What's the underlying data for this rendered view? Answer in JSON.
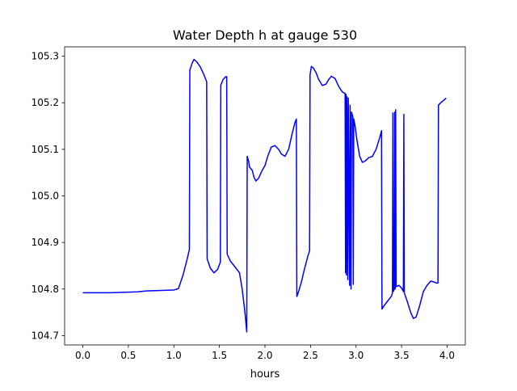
{
  "chart_data": {
    "type": "line",
    "title": "Water Depth h at gauge 530",
    "xlabel": "hours",
    "ylabel": "",
    "xlim": [
      -0.2,
      4.2
    ],
    "ylim": [
      104.68,
      105.32
    ],
    "xticks": [
      0.0,
      0.5,
      1.0,
      1.5,
      2.0,
      2.5,
      3.0,
      3.5,
      4.0
    ],
    "xtick_labels": [
      "0.0",
      "0.5",
      "1.0",
      "1.5",
      "2.0",
      "2.5",
      "3.0",
      "3.5",
      "4.0"
    ],
    "yticks": [
      104.7,
      104.8,
      104.9,
      105.0,
      105.1,
      105.2,
      105.3
    ],
    "ytick_labels": [
      "104.7",
      "104.8",
      "104.9",
      "105.0",
      "105.1",
      "105.2",
      "105.3"
    ],
    "grid": false,
    "series": [
      {
        "color": "#0000ff",
        "points": [
          [
            0.0,
            104.792
          ],
          [
            0.3,
            104.792
          ],
          [
            0.6,
            104.794
          ],
          [
            0.7,
            104.796
          ],
          [
            1.0,
            104.798
          ],
          [
            1.05,
            104.801
          ],
          [
            1.1,
            104.83
          ],
          [
            1.14,
            104.86
          ],
          [
            1.17,
            104.885
          ],
          [
            1.175,
            105.27
          ],
          [
            1.2,
            105.285
          ],
          [
            1.22,
            105.293
          ],
          [
            1.25,
            105.288
          ],
          [
            1.29,
            105.277
          ],
          [
            1.33,
            105.26
          ],
          [
            1.36,
            105.245
          ],
          [
            1.365,
            104.865
          ],
          [
            1.4,
            104.845
          ],
          [
            1.44,
            104.835
          ],
          [
            1.48,
            104.842
          ],
          [
            1.51,
            104.858
          ],
          [
            1.515,
            105.238
          ],
          [
            1.54,
            105.25
          ],
          [
            1.57,
            105.256
          ],
          [
            1.58,
            105.256
          ],
          [
            1.585,
            104.875
          ],
          [
            1.62,
            104.86
          ],
          [
            1.67,
            104.848
          ],
          [
            1.72,
            104.835
          ],
          [
            1.75,
            104.8
          ],
          [
            1.78,
            104.75
          ],
          [
            1.8,
            104.708
          ],
          [
            1.805,
            105.085
          ],
          [
            1.82,
            105.075
          ],
          [
            1.83,
            105.062
          ],
          [
            1.86,
            105.055
          ],
          [
            1.88,
            105.04
          ],
          [
            1.9,
            105.032
          ],
          [
            1.93,
            105.038
          ],
          [
            1.97,
            105.055
          ],
          [
            2.0,
            105.065
          ],
          [
            2.03,
            105.085
          ],
          [
            2.07,
            105.105
          ],
          [
            2.11,
            105.108
          ],
          [
            2.15,
            105.1
          ],
          [
            2.18,
            105.09
          ],
          [
            2.22,
            105.085
          ],
          [
            2.26,
            105.1
          ],
          [
            2.3,
            105.135
          ],
          [
            2.33,
            105.158
          ],
          [
            2.345,
            105.165
          ],
          [
            2.35,
            104.784
          ],
          [
            2.37,
            104.795
          ],
          [
            2.4,
            104.815
          ],
          [
            2.43,
            104.84
          ],
          [
            2.47,
            104.87
          ],
          [
            2.49,
            104.882
          ],
          [
            2.495,
            105.26
          ],
          [
            2.51,
            105.278
          ],
          [
            2.53,
            105.275
          ],
          [
            2.56,
            105.265
          ],
          [
            2.59,
            105.25
          ],
          [
            2.63,
            105.237
          ],
          [
            2.67,
            105.24
          ],
          [
            2.7,
            105.25
          ],
          [
            2.73,
            105.257
          ],
          [
            2.77,
            105.252
          ],
          [
            2.81,
            105.235
          ],
          [
            2.85,
            105.223
          ],
          [
            2.88,
            105.22
          ],
          [
            2.885,
            104.835
          ],
          [
            2.89,
            105.218
          ],
          [
            2.895,
            104.83
          ],
          [
            2.9,
            105.213
          ],
          [
            2.91,
            104.82
          ],
          [
            2.915,
            105.21
          ],
          [
            2.93,
            104.808
          ],
          [
            2.935,
            105.195
          ],
          [
            2.945,
            104.8
          ],
          [
            2.95,
            105.18
          ],
          [
            2.965,
            105.17
          ],
          [
            2.97,
            104.81
          ],
          [
            2.975,
            105.165
          ],
          [
            2.99,
            105.15
          ],
          [
            3.01,
            105.12
          ],
          [
            3.04,
            105.085
          ],
          [
            3.07,
            105.072
          ],
          [
            3.1,
            105.075
          ],
          [
            3.14,
            105.082
          ],
          [
            3.18,
            105.085
          ],
          [
            3.22,
            105.1
          ],
          [
            3.26,
            105.125
          ],
          [
            3.28,
            105.14
          ],
          [
            3.285,
            104.757
          ],
          [
            3.31,
            104.765
          ],
          [
            3.35,
            104.775
          ],
          [
            3.39,
            104.785
          ],
          [
            3.4,
            104.792
          ],
          [
            3.405,
            105.178
          ],
          [
            3.41,
            104.795
          ],
          [
            3.42,
            104.8
          ],
          [
            3.425,
            105.18
          ],
          [
            3.43,
            104.8
          ],
          [
            3.435,
            105.185
          ],
          [
            3.44,
            104.805
          ],
          [
            3.47,
            104.808
          ],
          [
            3.5,
            104.802
          ],
          [
            3.52,
            104.795
          ],
          [
            3.525,
            105.175
          ],
          [
            3.53,
            104.792
          ],
          [
            3.56,
            104.775
          ],
          [
            3.6,
            104.75
          ],
          [
            3.63,
            104.737
          ],
          [
            3.66,
            104.74
          ],
          [
            3.7,
            104.765
          ],
          [
            3.74,
            104.795
          ],
          [
            3.78,
            104.808
          ],
          [
            3.82,
            104.817
          ],
          [
            3.86,
            104.815
          ],
          [
            3.88,
            104.813
          ],
          [
            3.9,
            104.813
          ],
          [
            3.905,
            105.195
          ],
          [
            3.93,
            105.2
          ],
          [
            3.96,
            105.205
          ],
          [
            3.99,
            105.21
          ]
        ]
      }
    ]
  }
}
